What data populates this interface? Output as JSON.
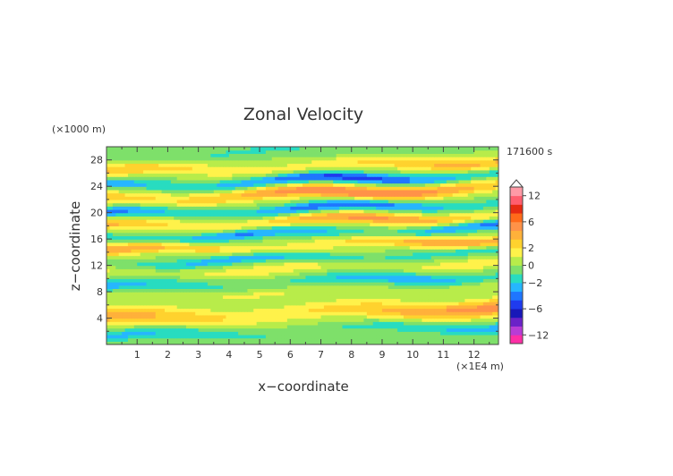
{
  "chart_data": {
    "type": "heatmap",
    "title": "Zonal Velocity",
    "xlabel": "x−coordinate",
    "ylabel": "z−coordinate",
    "x_unit": "(×1E4 m)",
    "y_unit": "(×1000 m)",
    "time_label": "171600 s",
    "xlim": [
      0,
      12.8
    ],
    "ylim": [
      0,
      30
    ],
    "x_ticks": [
      1,
      2,
      3,
      4,
      5,
      6,
      7,
      8,
      9,
      10,
      11,
      12
    ],
    "y_ticks": [
      4,
      8,
      12,
      16,
      20,
      24,
      28
    ],
    "x_tick_labels": [
      "1",
      "2",
      "3",
      "4",
      "5",
      "6",
      "7",
      "8",
      "9",
      "10",
      "11",
      "12"
    ],
    "y_tick_labels": [
      "4",
      "8",
      "12",
      "16",
      "20",
      "24",
      "28"
    ],
    "color_levels": [
      -14,
      -12,
      -10,
      -8,
      -6,
      -4,
      -3,
      -2,
      -1,
      0,
      1,
      2,
      3,
      4,
      6,
      8,
      10,
      12,
      14
    ],
    "level_colors": [
      "#ff2ea6",
      "#b83cd6",
      "#6a22c8",
      "#1818b8",
      "#1f3bef",
      "#1f76ff",
      "#26b6ff",
      "#28dcc0",
      "#7ee06a",
      "#b8ec4a",
      "#fff24a",
      "#ffd22e",
      "#ffb13a",
      "#ff9248",
      "#ff6a1a",
      "#e62a12",
      "#ff5e6e",
      "#ff9aa6"
    ],
    "colorbar_tick_values": [
      12,
      6,
      2,
      0,
      -2,
      -6,
      -12
    ],
    "colorbar_tick_labels": [
      "12",
      "6",
      "2",
      "0",
      "−2",
      "−6",
      "−12"
    ],
    "bands": [
      {
        "z": 2.0,
        "w": 0.9,
        "a": -2.3,
        "k": 0.5,
        "ph": 0.0
      },
      {
        "z": 4.8,
        "w": 1.3,
        "a": 4.6,
        "k": 0.4,
        "ph": 1.0
      },
      {
        "z": 7.8,
        "w": 1.0,
        "a": 1.4,
        "k": 0.8,
        "ph": 2.0
      },
      {
        "z": 9.5,
        "w": 1.0,
        "a": -2.6,
        "k": 0.6,
        "ph": 0.5
      },
      {
        "z": 11.5,
        "w": 0.9,
        "a": 1.8,
        "k": 0.9,
        "ph": 1.5
      },
      {
        "z": 13.1,
        "w": 0.8,
        "a": -2.8,
        "k": 0.7,
        "ph": 3.0
      },
      {
        "z": 15.0,
        "w": 0.9,
        "a": 4.0,
        "k": 0.5,
        "ph": 0.2
      },
      {
        "z": 16.9,
        "w": 0.8,
        "a": -3.5,
        "k": 0.8,
        "ph": 2.5
      },
      {
        "z": 18.7,
        "w": 0.9,
        "a": 4.2,
        "k": 0.6,
        "ph": 1.2
      },
      {
        "z": 20.6,
        "w": 0.8,
        "a": -4.0,
        "k": 0.7,
        "ph": 0.8
      },
      {
        "z": 22.9,
        "w": 1.0,
        "a": 5.2,
        "k": 0.5,
        "ph": 2.2
      },
      {
        "z": 24.9,
        "w": 0.8,
        "a": -4.5,
        "k": 0.6,
        "ph": 1.7
      },
      {
        "z": 27.0,
        "w": 1.0,
        "a": 3.2,
        "k": 0.5,
        "ph": 0.4
      },
      {
        "z": 29.2,
        "w": 0.8,
        "a": -1.2,
        "k": 0.7,
        "ph": 2.9
      }
    ],
    "tilt": 0.14
  }
}
